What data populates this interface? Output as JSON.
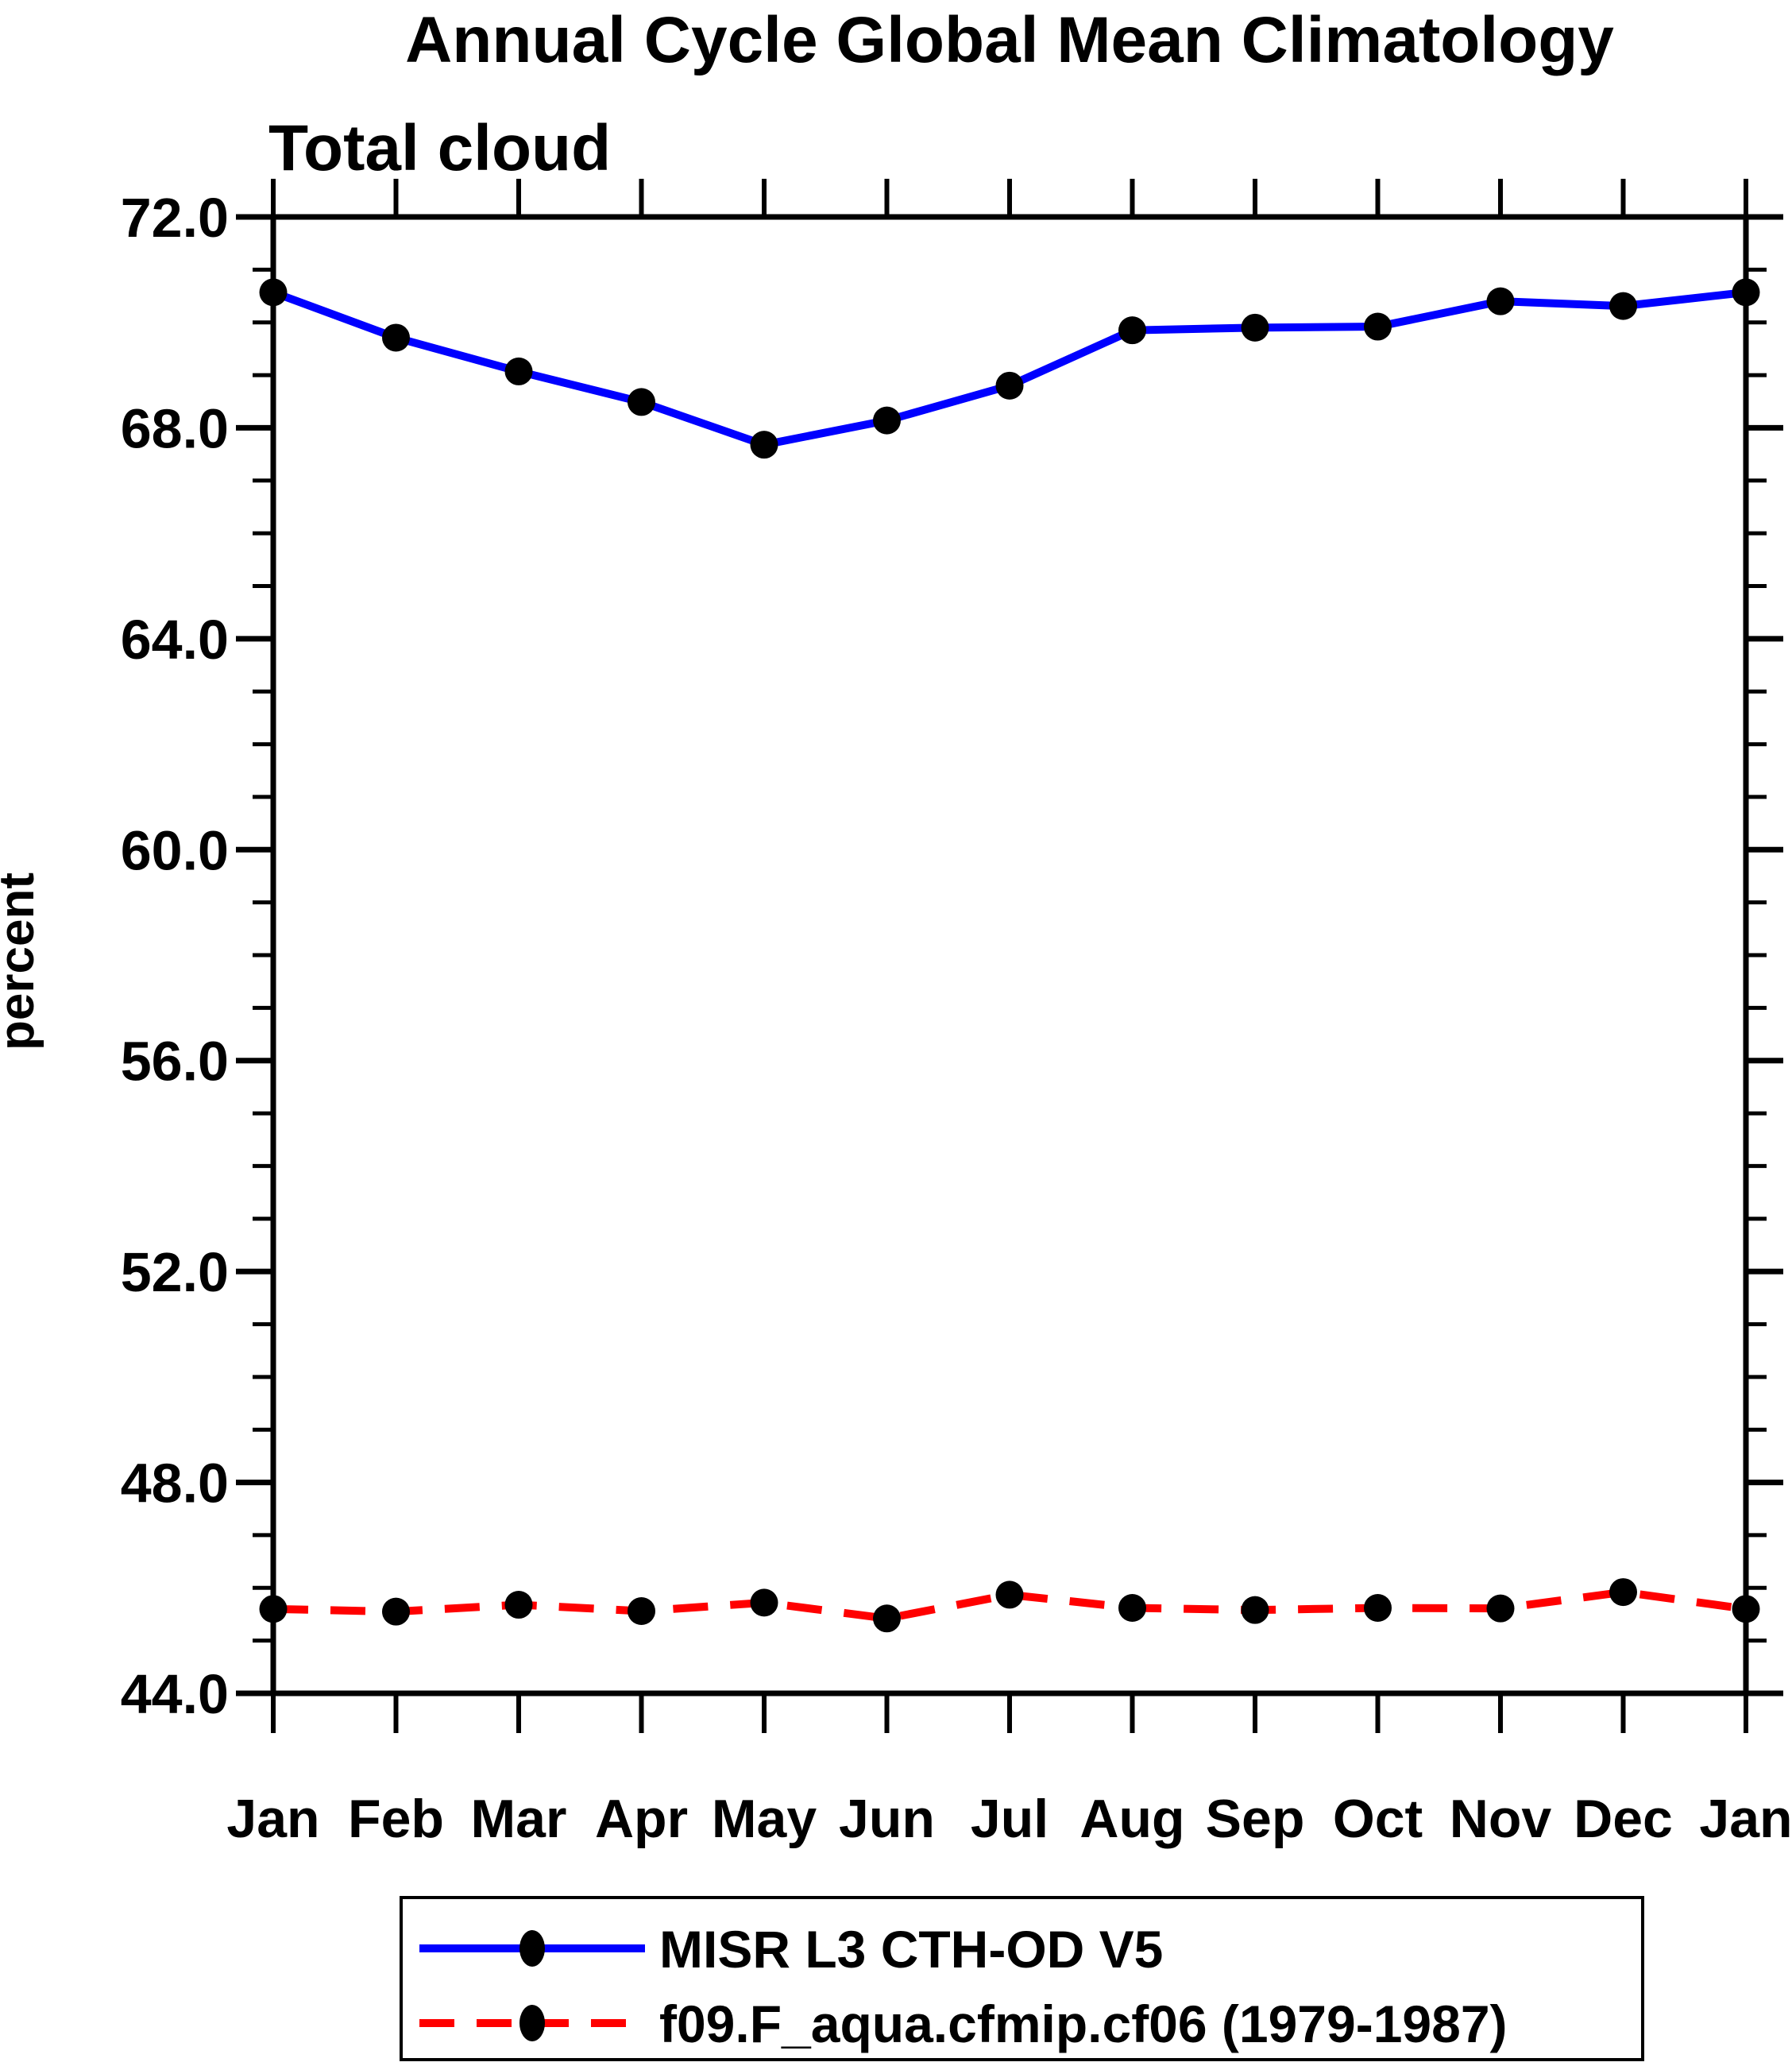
{
  "chart_data": {
    "type": "line",
    "title": "Annual Cycle Global Mean Climatology",
    "subtitle": "Total cloud",
    "ylabel": "percent",
    "xlabel": "",
    "categories": [
      "Jan",
      "Feb",
      "Mar",
      "Apr",
      "May",
      "Jun",
      "Jul",
      "Aug",
      "Sep",
      "Oct",
      "Nov",
      "Dec",
      "Jan"
    ],
    "ylim": [
      44.0,
      72.0
    ],
    "ytick_major_step": 4.0,
    "ytick_minor_step": 1.0,
    "ytick_label_format": "one-decimal",
    "grid": false,
    "legend_position": "bottom-center-box",
    "marker": "filled-circle",
    "marker_color": "#000000",
    "series": [
      {
        "name": "MISR L3 CTH-OD V5",
        "color": "#0000ff",
        "line_style": "solid",
        "values": [
          70.57,
          69.71,
          69.07,
          68.49,
          67.68,
          68.14,
          68.8,
          69.85,
          69.9,
          69.92,
          70.4,
          70.31,
          70.57
        ]
      },
      {
        "name": "f09.F_aqua.cfmip.cf06 (1979-1987)",
        "color": "#ff0000",
        "line_style": "dashed",
        "values": [
          45.6,
          45.55,
          45.68,
          45.56,
          45.72,
          45.42,
          45.87,
          45.62,
          45.58,
          45.62,
          45.61,
          45.92,
          45.6
        ]
      }
    ]
  }
}
